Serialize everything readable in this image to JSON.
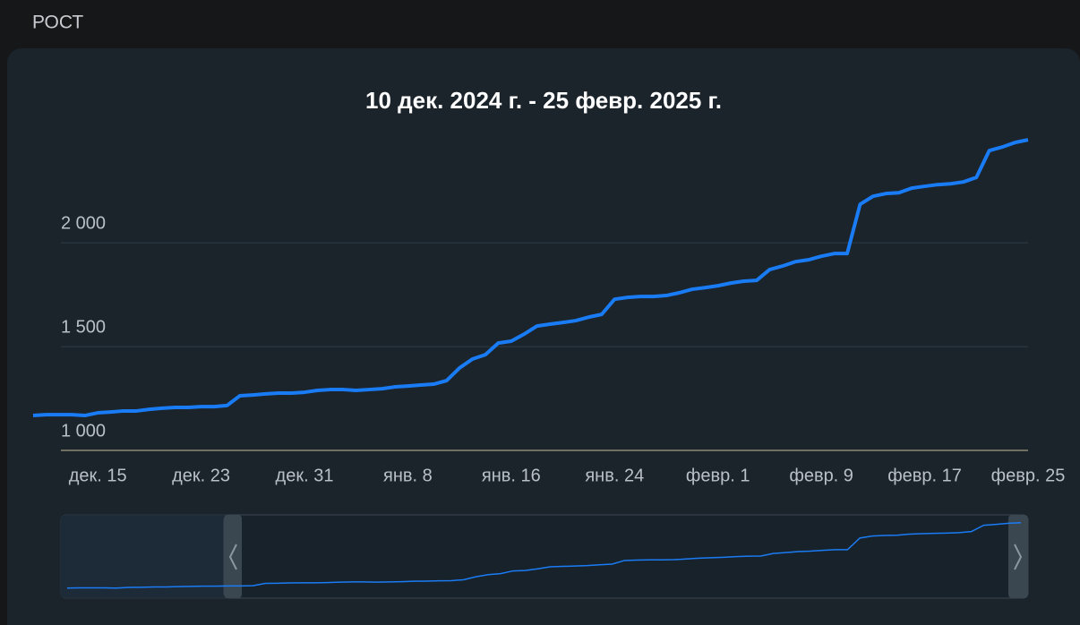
{
  "header": "РОСТ",
  "chart_data": {
    "type": "line",
    "title": "10 дек. 2024 г. - 25 февр. 2025 г.",
    "x": [
      "2024-12-10",
      "2024-12-11",
      "2024-12-12",
      "2024-12-13",
      "2024-12-14",
      "2024-12-15",
      "2024-12-16",
      "2024-12-17",
      "2024-12-18",
      "2024-12-19",
      "2024-12-20",
      "2024-12-21",
      "2024-12-22",
      "2024-12-23",
      "2024-12-24",
      "2024-12-25",
      "2024-12-26",
      "2024-12-27",
      "2024-12-28",
      "2024-12-29",
      "2024-12-30",
      "2024-12-31",
      "2025-01-01",
      "2025-01-02",
      "2025-01-03",
      "2025-01-04",
      "2025-01-05",
      "2025-01-06",
      "2025-01-07",
      "2025-01-08",
      "2025-01-09",
      "2025-01-10",
      "2025-01-11",
      "2025-01-12",
      "2025-01-13",
      "2025-01-14",
      "2025-01-15",
      "2025-01-16",
      "2025-01-17",
      "2025-01-18",
      "2025-01-19",
      "2025-01-20",
      "2025-01-21",
      "2025-01-22",
      "2025-01-23",
      "2025-01-24",
      "2025-01-25",
      "2025-01-26",
      "2025-01-27",
      "2025-01-28",
      "2025-01-29",
      "2025-01-30",
      "2025-01-31",
      "2025-02-01",
      "2025-02-02",
      "2025-02-03",
      "2025-02-04",
      "2025-02-05",
      "2025-02-06",
      "2025-02-07",
      "2025-02-08",
      "2025-02-09",
      "2025-02-10",
      "2025-02-11",
      "2025-02-12",
      "2025-02-13",
      "2025-02-14",
      "2025-02-15",
      "2025-02-16",
      "2025-02-17",
      "2025-02-18",
      "2025-02-19",
      "2025-02-20",
      "2025-02-21",
      "2025-02-22",
      "2025-02-23",
      "2025-02-24",
      "2025-02-25"
    ],
    "series": [
      {
        "color": "#1a7cf5",
        "values": [
          1168,
          1172,
          1172,
          1172,
          1168,
          1181,
          1185,
          1190,
          1190,
          1198,
          1203,
          1207,
          1207,
          1211,
          1211,
          1216,
          1263,
          1267,
          1272,
          1276,
          1276,
          1280,
          1289,
          1293,
          1293,
          1289,
          1293,
          1297,
          1306,
          1310,
          1315,
          1319,
          1336,
          1397,
          1440,
          1461,
          1517,
          1526,
          1560,
          1599,
          1608,
          1616,
          1625,
          1642,
          1655,
          1728,
          1737,
          1741,
          1741,
          1746,
          1759,
          1776,
          1784,
          1793,
          1806,
          1815,
          1819,
          1871,
          1888,
          1909,
          1918,
          1935,
          1948,
          1948,
          2185,
          2224,
          2237,
          2241,
          2263,
          2272,
          2280,
          2284,
          2293,
          2315,
          2444,
          2461,
          2483,
          2496
        ]
      }
    ],
    "xlim": [
      "2024-12-10",
      "2025-02-25"
    ],
    "xticks": [
      {
        "value": "2024-12-15",
        "label": "дек. 15"
      },
      {
        "value": "2024-12-23",
        "label": "дек. 23"
      },
      {
        "value": "2024-12-31",
        "label": "дек. 31"
      },
      {
        "value": "2025-01-08",
        "label": "янв. 8"
      },
      {
        "value": "2025-01-16",
        "label": "янв. 16"
      },
      {
        "value": "2025-01-24",
        "label": "янв. 24"
      },
      {
        "value": "2025-02-01",
        "label": "февр. 1"
      },
      {
        "value": "2025-02-09",
        "label": "февр. 9"
      },
      {
        "value": "2025-02-17",
        "label": "февр. 17"
      },
      {
        "value": "2025-02-25",
        "label": "февр. 25"
      }
    ],
    "ylim": [
      1000,
      2600
    ],
    "yticks": [
      {
        "value": 1000,
        "label": "1 000"
      },
      {
        "value": 1500,
        "label": "1 500"
      },
      {
        "value": 2000,
        "label": "2 000"
      }
    ],
    "grid": true
  }
}
